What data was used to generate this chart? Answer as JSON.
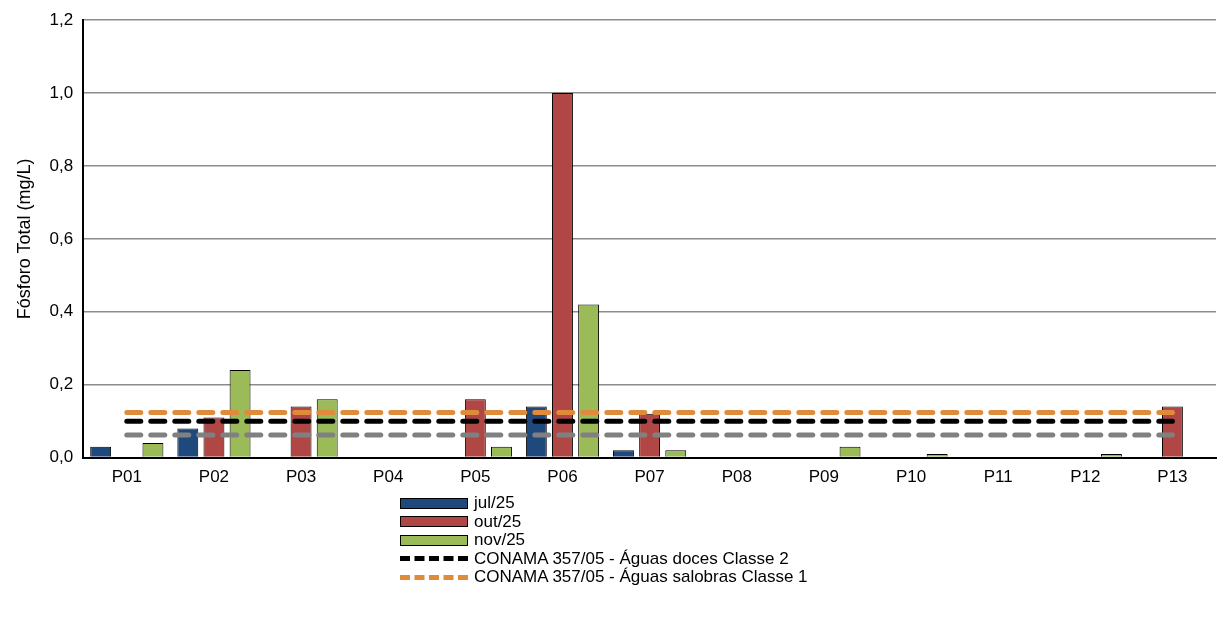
{
  "chart_data": {
    "type": "bar",
    "ylabel": "Fósforo Total (mg/L)",
    "categories": [
      "P01",
      "P02",
      "P03",
      "P04",
      "P05",
      "P06",
      "P07",
      "P08",
      "P09",
      "P10",
      "P11",
      "P12",
      "P13"
    ],
    "series": [
      {
        "name": "jul/25",
        "color": "#1f497d",
        "values": [
          0.03,
          0.08,
          null,
          null,
          null,
          0.14,
          0.02,
          null,
          null,
          null,
          null,
          null,
          null
        ]
      },
      {
        "name": "out/25",
        "color": "#b04745",
        "values": [
          null,
          0.11,
          0.14,
          null,
          0.16,
          1.0,
          0.12,
          null,
          null,
          null,
          null,
          null,
          0.14
        ]
      },
      {
        "name": "nov/25",
        "color": "#9bbb59",
        "values": [
          0.04,
          0.24,
          0.16,
          null,
          0.03,
          0.42,
          0.02,
          null,
          0.03,
          0.01,
          null,
          0.01,
          null
        ]
      },
      {
        "name": "CONAMA 357/05 - Águas doces Classe 2",
        "type": "line",
        "color": "#000000",
        "line_style": "dashed",
        "values": [
          0.1,
          0.1,
          0.1,
          0.1,
          0.1,
          0.1,
          0.1,
          0.1,
          0.1,
          0.1,
          0.1,
          0.1,
          0.1
        ]
      },
      {
        "name": "CONAMA 357/05 - Águas salobras Classe 1",
        "type": "line",
        "color": "#e08a3c",
        "line_style": "dashed",
        "values": [
          0.124,
          0.124,
          0.124,
          0.124,
          0.124,
          0.124,
          0.124,
          0.124,
          0.124,
          0.124,
          0.124,
          0.124,
          0.124
        ]
      },
      {
        "type": "line",
        "color": "#808080",
        "line_style": "dashed",
        "values": [
          0.062,
          0.062,
          0.062,
          0.062,
          0.062,
          0.062,
          0.062,
          0.062,
          0.062,
          0.062,
          0.062,
          0.062,
          0.062
        ]
      }
    ],
    "ylim": [
      0,
      1.2
    ],
    "yticks": [
      {
        "value": 0,
        "label": "0,0"
      },
      {
        "value": 0.2,
        "label": "0,2"
      },
      {
        "value": 0.4,
        "label": "0,4"
      },
      {
        "value": 0.6,
        "label": "0,6"
      },
      {
        "value": 0.8,
        "label": "0,8"
      },
      {
        "value": 1.0,
        "label": "1,0"
      },
      {
        "value": 1.2,
        "label": "1,2"
      }
    ],
    "grid": "y",
    "legend": "bottom"
  }
}
